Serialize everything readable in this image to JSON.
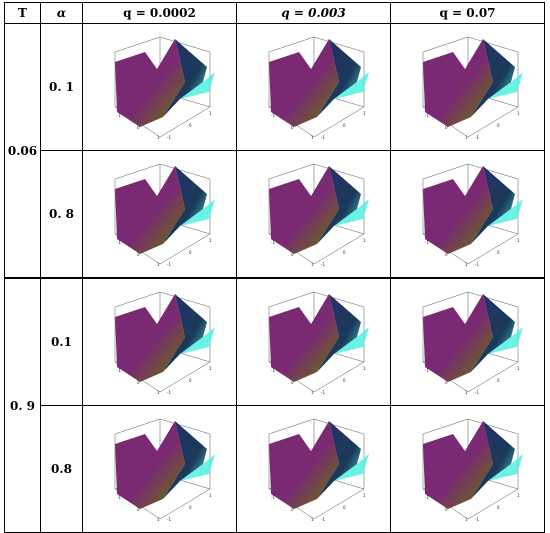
{
  "table": {
    "headers": {
      "t": "T",
      "alpha": "α",
      "q1": "q = 0.0002",
      "q2": "q = 0.003",
      "q3": "q = 0.07"
    },
    "rows": [
      {
        "t": "0.06",
        "alpha": "0. 1"
      },
      {
        "t": "",
        "alpha": "0. 8"
      },
      {
        "t": "0. 9",
        "alpha": "0.1"
      },
      {
        "t": "",
        "alpha": "0.8"
      }
    ],
    "axis_ticks": {
      "x": [
        "-1",
        "0",
        "1"
      ],
      "y": [
        "-1",
        "0",
        "1"
      ]
    },
    "colors": {
      "magenta": "#7a2a72",
      "navy": "#2a2d6a",
      "cyan": "#4ff0e0",
      "yellow": "#f2d95a",
      "olive": "#6a5a2a"
    }
  }
}
